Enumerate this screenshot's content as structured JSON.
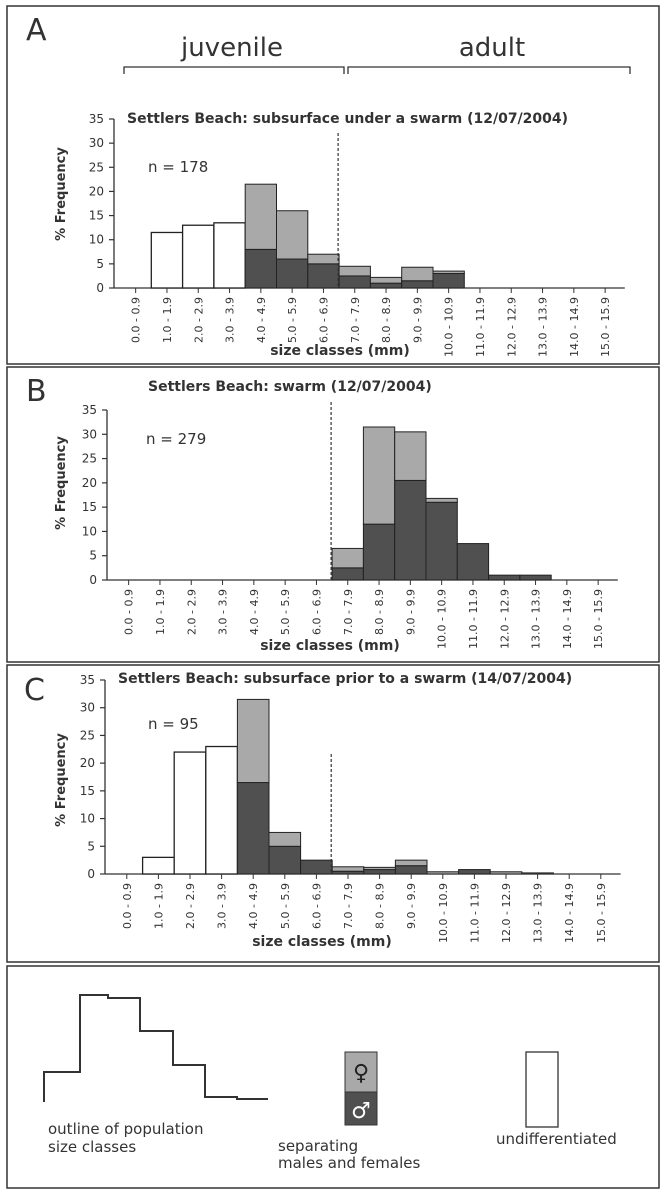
{
  "header": {
    "juvenile_label": "juvenile",
    "adult_label": "adult"
  },
  "colors": {
    "male": "#505050",
    "female": "#a9a9a9",
    "undifferentiated": "#ffffff",
    "frame": "#333333"
  },
  "chart_data": [
    {
      "type": "bar",
      "panel_letter": "A",
      "title": "Settlers Beach: subsurface under a swarm (12/07/2004)",
      "n_label": "n = 178",
      "xlabel": "size classes (mm)",
      "ylabel": "% Frequency",
      "ylim": [
        0,
        35
      ],
      "yticks": [
        0,
        5,
        10,
        15,
        20,
        25,
        30,
        35
      ],
      "categories": [
        "0.0 - 0.9",
        "1.0 - 1.9",
        "2.0 - 2.9",
        "3.0 - 3.9",
        "4.0 - 4.9",
        "5.0 - 5.9",
        "6.0 - 6.9",
        "7.0 - 7.9",
        "8.0 - 8.9",
        "9.0 - 9.9",
        "10.0 - 10.9",
        "11.0 - 11.9",
        "12.0 - 12.9",
        "13.0 - 13.9",
        "14.0 - 14.9",
        "15.0 - 15.9"
      ],
      "divider_between": [
        6,
        7
      ],
      "series": [
        {
          "key": "undifferentiated",
          "values": [
            0,
            11.5,
            13,
            13.5,
            0,
            0,
            0,
            0,
            0,
            0,
            0,
            0,
            0,
            0,
            0,
            0
          ]
        },
        {
          "key": "male",
          "values": [
            0,
            0,
            0,
            0,
            8,
            6,
            5,
            2.5,
            1,
            1.5,
            3,
            0,
            0,
            0,
            0,
            0
          ]
        },
        {
          "key": "female",
          "values": [
            0,
            0,
            0,
            0,
            13.5,
            10,
            2,
            2,
            1.2,
            2.8,
            0.5,
            0,
            0,
            0,
            0,
            0
          ]
        }
      ]
    },
    {
      "type": "bar",
      "panel_letter": "B",
      "title": "Settlers Beach: swarm (12/07/2004)",
      "n_label": "n = 279",
      "xlabel": "size classes (mm)",
      "ylabel": "% Frequency",
      "ylim": [
        0,
        35
      ],
      "yticks": [
        0,
        5,
        10,
        15,
        20,
        25,
        30,
        35
      ],
      "categories": [
        "0.0 - 0.9",
        "1.0 - 1.9",
        "2.0 - 2.9",
        "3.0 - 3.9",
        "4.0 - 4.9",
        "5.0 - 5.9",
        "6.0 - 6.9",
        "7.0 - 7.9",
        "8.0 - 8.9",
        "9.0 - 9.9",
        "10.0 - 10.9",
        "11.0 - 11.9",
        "12.0 - 12.9",
        "13.0 - 13.9",
        "14.0 - 14.9",
        "15.0 - 15.9"
      ],
      "divider_between": [
        6,
        7
      ],
      "series": [
        {
          "key": "undifferentiated",
          "values": [
            0,
            0,
            0,
            0,
            0,
            0,
            0,
            0,
            0,
            0,
            0,
            0,
            0,
            0,
            0,
            0
          ]
        },
        {
          "key": "male",
          "values": [
            0,
            0,
            0,
            0,
            0,
            0,
            0,
            2.5,
            11.5,
            20.5,
            16,
            7.5,
            1,
            1,
            0,
            0
          ]
        },
        {
          "key": "female",
          "values": [
            0,
            0,
            0,
            0,
            0,
            0,
            0,
            4,
            20,
            10,
            0.8,
            0,
            0,
            0,
            0,
            0
          ]
        }
      ]
    },
    {
      "type": "bar",
      "panel_letter": "C",
      "title": "Settlers Beach: subsurface prior to a swarm (14/07/2004)",
      "n_label": "n = 95",
      "xlabel": "size classes (mm)",
      "ylabel": "% Frequency",
      "ylim": [
        0,
        35
      ],
      "yticks": [
        0,
        5,
        10,
        15,
        20,
        25,
        30,
        35
      ],
      "categories": [
        "0.0 - 0.9",
        "1.0 - 1.9",
        "2.0 - 2.9",
        "3.0 - 3.9",
        "4.0 - 4.9",
        "5.0 - 5.9",
        "6.0 - 6.9",
        "7.0 - 7.9",
        "8.0 - 8.9",
        "9.0 - 9.9",
        "10.0 - 10.9",
        "11.0 - 11.9",
        "12.0 - 12.9",
        "13.0 - 13.9",
        "14.0 - 14.9",
        "15.0 - 15.9"
      ],
      "divider_between": [
        6,
        7
      ],
      "series": [
        {
          "key": "undifferentiated",
          "values": [
            0,
            3,
            22,
            23,
            0,
            0,
            0,
            0,
            0,
            0,
            0,
            0,
            0,
            0,
            0,
            0
          ]
        },
        {
          "key": "male",
          "values": [
            0,
            0,
            0,
            0,
            16.5,
            5,
            2.5,
            0.5,
            0.8,
            1.5,
            0,
            0.8,
            0,
            0,
            0,
            0
          ]
        },
        {
          "key": "female",
          "values": [
            0,
            0,
            0,
            0,
            15,
            2.5,
            0,
            0.8,
            0.4,
            1,
            0.4,
            0,
            0.4,
            0.2,
            0,
            0
          ]
        }
      ]
    }
  ],
  "legend": {
    "outline_label_line1": "outline of population",
    "outline_label_line2": "size classes",
    "female_symbol": "♀",
    "male_symbol": "♂",
    "sep_label_line1": "separating",
    "sep_label_line2": "males and females",
    "undiff_label": "undifferentiated"
  }
}
